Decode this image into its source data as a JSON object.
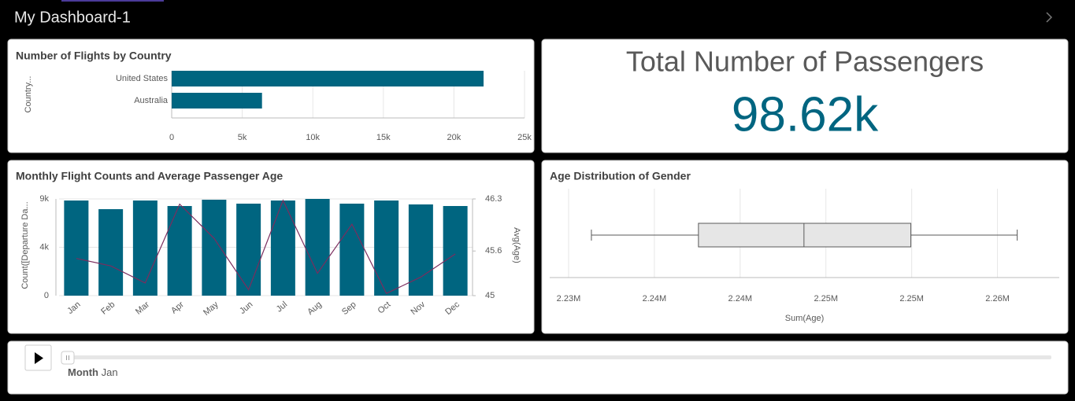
{
  "header": {
    "title": "My Dashboard-1"
  },
  "chart_data": [
    {
      "type": "hbar",
      "title": "Number of Flights by Country",
      "ylabel": "Country...",
      "categories": [
        "United States",
        "Australia"
      ],
      "values": [
        22100,
        6400
      ],
      "color": "#006580",
      "xlim": [
        0,
        25000
      ],
      "xticks": [
        0,
        {
          "value": 5000,
          "label": "5k"
        },
        {
          "value": 10000,
          "label": "10k"
        },
        {
          "value": 15000,
          "label": "15k"
        },
        {
          "value": 20000,
          "label": "20k"
        },
        {
          "value": 25000,
          "label": "25k"
        }
      ],
      "grid": true
    },
    {
      "type": "combo",
      "title": "Monthly Flight Counts and Average Passenger Age",
      "ylabel": "Count([Departure Da...",
      "y2label": "Avg(Age)",
      "categories": [
        "Jan",
        "Feb",
        "Mar",
        "Apr",
        "May",
        "Jun",
        "Jul",
        "Aug",
        "Sep",
        "Oct",
        "Nov",
        "Dec"
      ],
      "series": [
        {
          "type": "bar",
          "color": "#006580",
          "values": [
            8460,
            7690,
            8460,
            7970,
            8530,
            8180,
            8460,
            8600,
            8180,
            8460,
            8110,
            7970
          ]
        },
        {
          "type": "line",
          "axis": "y2",
          "color": "#7b2d5e",
          "values": [
            45.5,
            45.4,
            45.17,
            46.23,
            45.77,
            45.08,
            46.28,
            45.3,
            45.96,
            45.03,
            45.25,
            45.56
          ]
        }
      ],
      "ylim": [
        0,
        8600
      ],
      "yticks": [
        0,
        {
          "value": 4300,
          "label": "4k"
        },
        {
          "value": 8600,
          "label": "9k"
        }
      ],
      "y2lim": [
        45,
        46.3
      ],
      "y2ticks": [
        45,
        45.6,
        46.3
      ],
      "grid": true
    },
    {
      "type": "box",
      "title": "Age Distribution of Gender",
      "xlabel": "Sum(Age)",
      "box": {
        "min": 2233330,
        "q1": 2239570,
        "median": 2245720,
        "q3": 2251950,
        "max": 2258150
      },
      "color": "#e6e6e6",
      "xlim": [
        2230900,
        2260600
      ],
      "xticks": [
        {
          "value": 2232000,
          "label": "2.23M"
        },
        {
          "value": 2237000,
          "label": "2.24M"
        },
        {
          "value": 2242000,
          "label": "2.24M"
        },
        {
          "value": 2247000,
          "label": "2.25M"
        },
        {
          "value": 2252000,
          "label": "2.25M"
        },
        {
          "value": 2257000,
          "label": "2.26M"
        }
      ],
      "grid": true
    }
  ],
  "kpi": {
    "title": "Total Number of Passengers",
    "value": "98.62k",
    "color": "#006580"
  },
  "player": {
    "label": "Month",
    "value": "Jan"
  }
}
